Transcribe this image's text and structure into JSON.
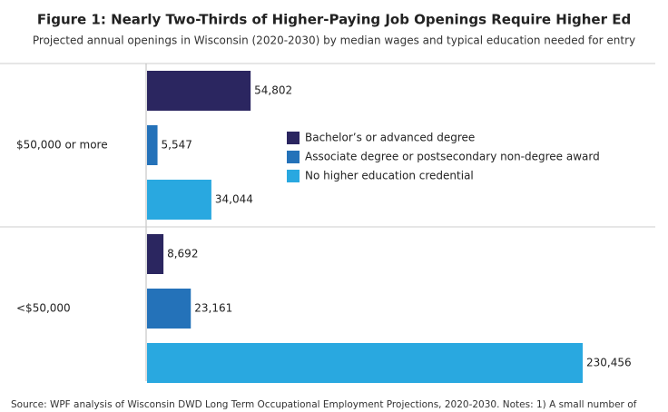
{
  "chart_data": {
    "type": "barh",
    "title": "Figure 1: Nearly Two-Thirds of Higher-Paying Job Openings Require Higher Ed",
    "subtitle": "Projected annual openings in Wisconsin (2020-2030) by median wages and typical education needed for entry",
    "source": "Source: WPF analysis of Wisconsin DWD Long Term Occupational Employment Projections, 2020-2030. Notes: 1) A small number of",
    "categories": [
      "$50,000 or more",
      "<$50,000"
    ],
    "series": [
      {
        "name": "Bachelor’s or advanced degree",
        "color": "#2b2660",
        "values": [
          54802,
          8692
        ],
        "value_labels": [
          "54,802",
          "8,692"
        ]
      },
      {
        "name": "Associate degree or postsecondary non-degree award",
        "color": "#2472b9",
        "values": [
          5547,
          23161
        ],
        "value_labels": [
          "5,547",
          "23,161"
        ]
      },
      {
        "name": "No higher education credential",
        "color": "#29a8e0",
        "values": [
          34044,
          230456
        ],
        "value_labels": [
          "34,044",
          "230,456"
        ]
      }
    ]
  }
}
